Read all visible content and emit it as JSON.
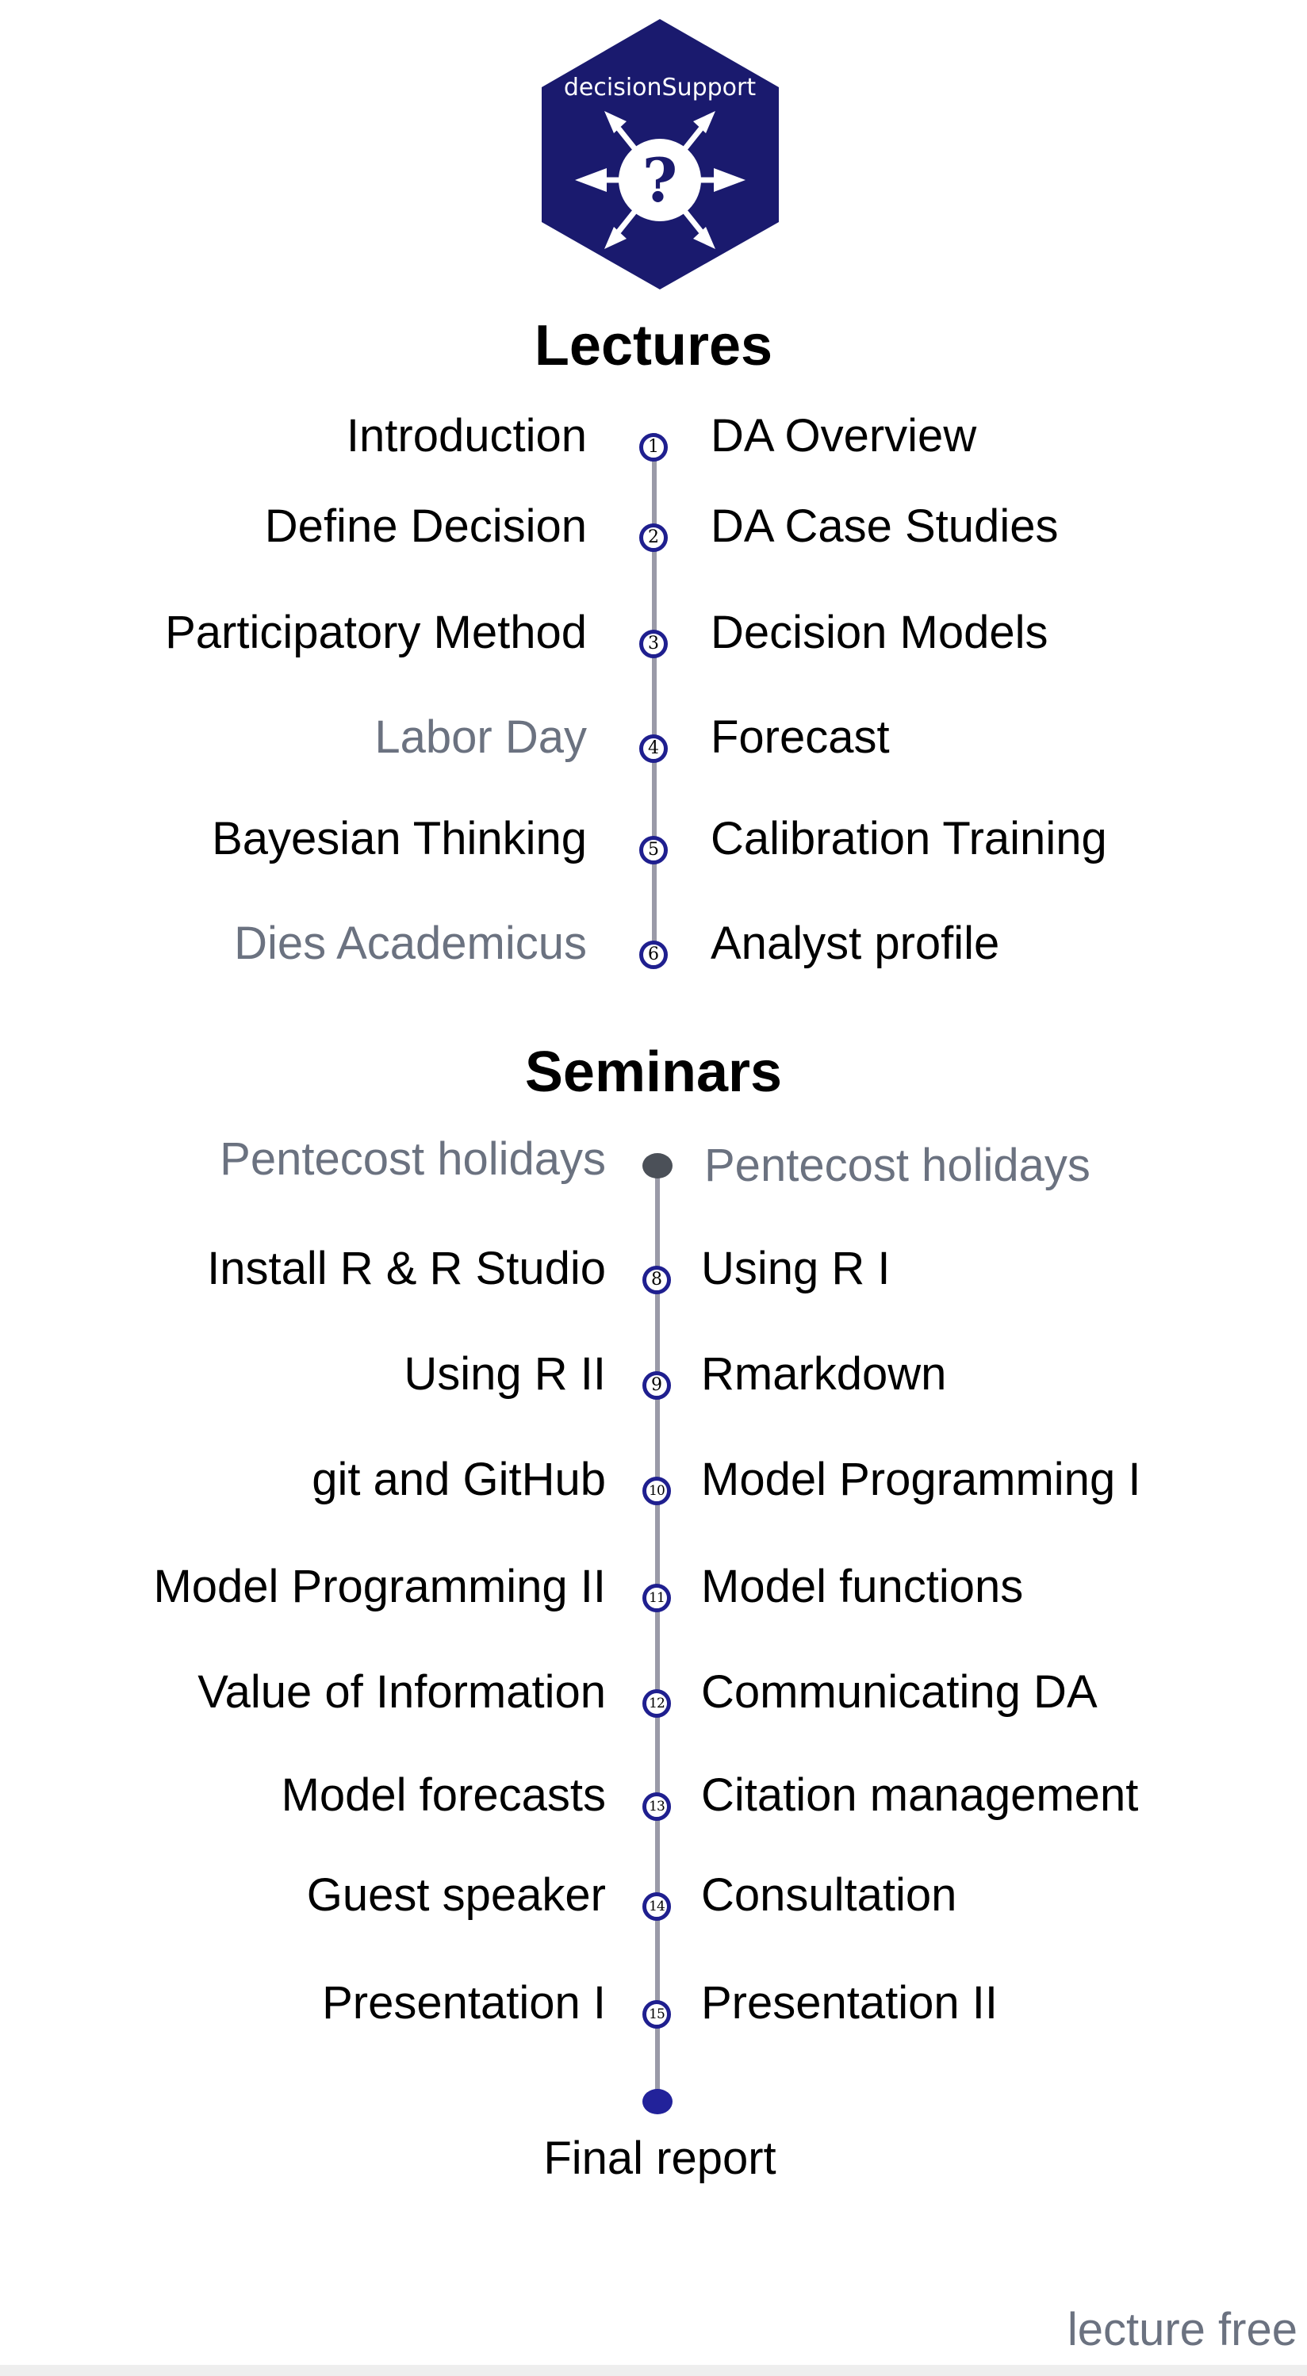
{
  "logo": {
    "text": "decisionSupport",
    "symbol": "?",
    "icon": "hexagon-question-arrows-logo",
    "color": "#1a1a6e"
  },
  "lectures": {
    "title": "Lectures",
    "rows": [
      {
        "num": "1",
        "left": "Introduction",
        "right": "DA Overview",
        "left_muted": false
      },
      {
        "num": "2",
        "left": "Define Decision",
        "right": "DA Case Studies",
        "left_muted": false
      },
      {
        "num": "3",
        "left": "Participatory Method",
        "right": "Decision Models",
        "left_muted": false
      },
      {
        "num": "4",
        "left": "Labor Day",
        "right": "Forecast",
        "left_muted": true
      },
      {
        "num": "5",
        "left": "Bayesian Thinking",
        "right": "Calibration Training",
        "left_muted": false
      },
      {
        "num": "6",
        "left": "Dies Academicus",
        "right": "Analyst profile",
        "left_muted": true
      }
    ]
  },
  "seminars": {
    "title": "Seminars",
    "holiday": {
      "left": "Pentecost holidays",
      "right": "Pentecost holidays"
    },
    "rows": [
      {
        "num": "8",
        "left": "Install R & R Studio",
        "right": "Using R I"
      },
      {
        "num": "9",
        "left": "Using R II",
        "right": "Rmarkdown"
      },
      {
        "num": "10",
        "left": "git and GitHub",
        "right": "Model Programming I"
      },
      {
        "num": "11",
        "left": "Model Programming II",
        "right": "Model functions"
      },
      {
        "num": "12",
        "left": "Value of Information",
        "right": "Communicating DA"
      },
      {
        "num": "13",
        "left": "Model forecasts",
        "right": "Citation management"
      },
      {
        "num": "14",
        "left": "Guest speaker",
        "right": "Consultation"
      },
      {
        "num": "15",
        "left": "Presentation I",
        "right": "Presentation II"
      }
    ],
    "final": "Final report"
  },
  "footer": {
    "legend": "lecture free"
  },
  "colors": {
    "accent": "#1f1f8f",
    "muted_text": "#6b7280",
    "line": "#9a9aa8",
    "holiday_dot": "#4b5058",
    "final_dot": "#22229a"
  }
}
